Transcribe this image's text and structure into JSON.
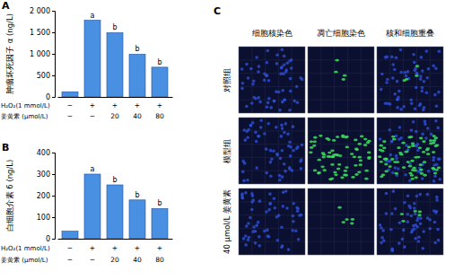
{
  "chart_data": [
    {
      "type": "bar",
      "title": "A",
      "y_label": "肿瘤坏死因子 α (ng/L)",
      "categories": [
        null,
        null,
        null,
        null,
        null
      ],
      "values": [
        120,
        1780,
        1490,
        990,
        690
      ],
      "color": "#4a90e2",
      "ylim": [
        0,
        2000
      ],
      "yticks": [
        0,
        500,
        {
          "value": 1000,
          "label": "1 000"
        },
        {
          "value": 1500,
          "label": "1 500"
        },
        {
          "value": 2000,
          "label": "2 000"
        }
      ],
      "annotations": [
        null,
        "a",
        "b",
        "b",
        "b"
      ],
      "x_rows": [
        {
          "label": "H₂O₂(1 mmol/L)",
          "values": [
            "−",
            "+",
            "+",
            "+",
            "+"
          ]
        },
        {
          "label": "姜黄素 (μmol/L)",
          "values": [
            "−",
            "−",
            "20",
            "40",
            "80"
          ]
        }
      ]
    },
    {
      "type": "bar",
      "title": "B",
      "y_label": "白细胞介素 6 (ng/L)",
      "categories": [
        null,
        null,
        null,
        null,
        null
      ],
      "values": [
        35,
        300,
        250,
        180,
        140
      ],
      "color": "#4a90e2",
      "ylim": [
        0,
        400
      ],
      "yticks": [
        0,
        100,
        200,
        300,
        400
      ],
      "annotations": [
        null,
        "a",
        "b",
        "b",
        "b"
      ],
      "x_rows": [
        {
          "label": "H₂O₂(1 mmol/L)",
          "values": [
            "−",
            "+",
            "+",
            "+",
            "+"
          ]
        },
        {
          "label": "姜黄素 (μmol/L)",
          "values": [
            "−",
            "−",
            "20",
            "40",
            "80"
          ]
        }
      ]
    }
  ],
  "panel_c": {
    "label": "C",
    "columns": [
      "细胞核染色",
      "凋亡细胞染色",
      "核和细胞重叠"
    ],
    "rows": [
      "对照组",
      "模型组",
      "40 μmol/L 姜黄素"
    ]
  }
}
